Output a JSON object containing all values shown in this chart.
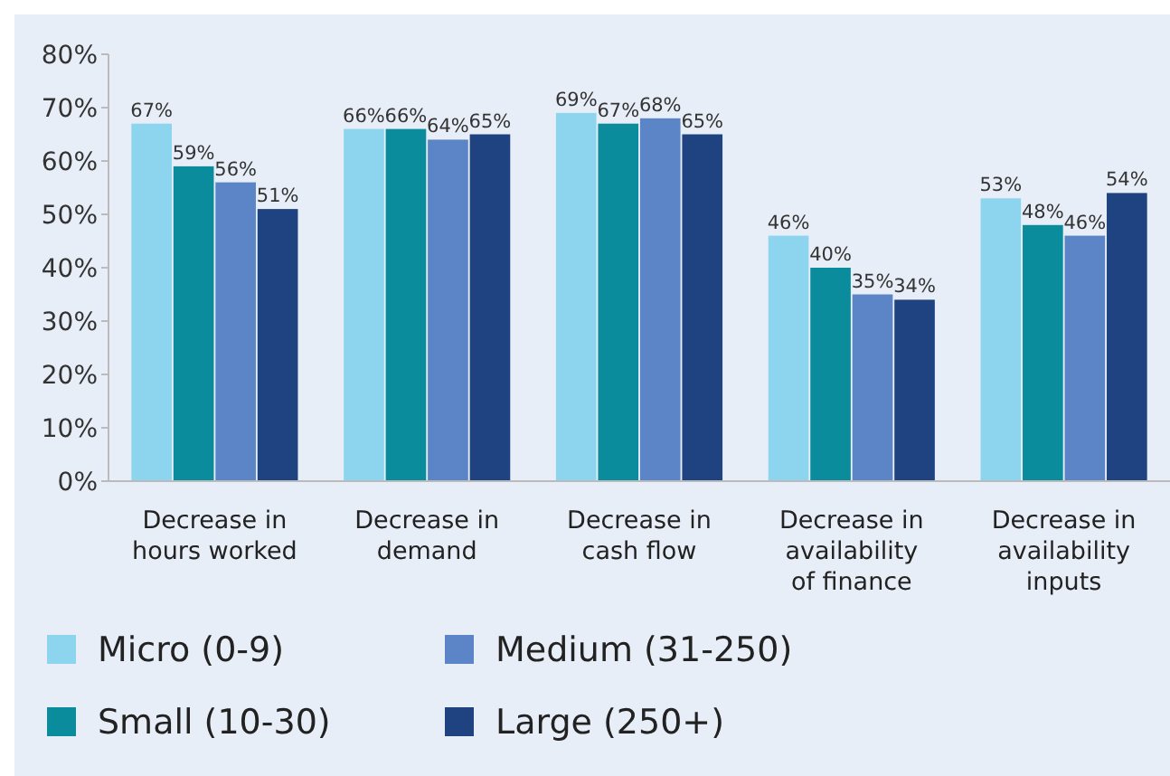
{
  "chart_data": {
    "type": "bar",
    "categories": [
      "Decrease in hours worked",
      "Decrease in demand",
      "Decrease in cash flow",
      "Decrease in availability of finance",
      "Decrease in availability inputs"
    ],
    "series": [
      {
        "name": "Micro (0-9)",
        "color": "#8dd5ef",
        "values": [
          67,
          66,
          69,
          46,
          53
        ],
        "value_labels": [
          "67%",
          "66%",
          "69%",
          "46%",
          "53%"
        ]
      },
      {
        "name": "Small (10-30)",
        "color": "#0b8c9c",
        "values": [
          59,
          66,
          67,
          40,
          48
        ],
        "value_labels": [
          "59%",
          "66%",
          "67%",
          "40%",
          "48%"
        ]
      },
      {
        "name": "Medium (31-250)",
        "color": "#5b85c6",
        "values": [
          56,
          64,
          68,
          35,
          46
        ],
        "value_labels": [
          "56%",
          "64%",
          "68%",
          "35%",
          "46%"
        ]
      },
      {
        "name": "Large (250+)",
        "color": "#1e4380",
        "values": [
          51,
          65,
          65,
          34,
          54
        ],
        "value_labels": [
          "51%",
          "65%",
          "65%",
          "34%",
          "54%"
        ]
      }
    ],
    "ylim": [
      0,
      80
    ],
    "yticks": [
      {
        "value": 0,
        "label": "0%"
      },
      {
        "value": 10,
        "label": "10%"
      },
      {
        "value": 20,
        "label": "20%"
      },
      {
        "value": 30,
        "label": "30%"
      },
      {
        "value": 40,
        "label": "40%"
      },
      {
        "value": 50,
        "label": "50%"
      },
      {
        "value": 60,
        "label": "60%"
      },
      {
        "value": 70,
        "label": "70%"
      },
      {
        "value": 80,
        "label": "80%"
      }
    ],
    "grid": false,
    "legend": "bottom"
  }
}
